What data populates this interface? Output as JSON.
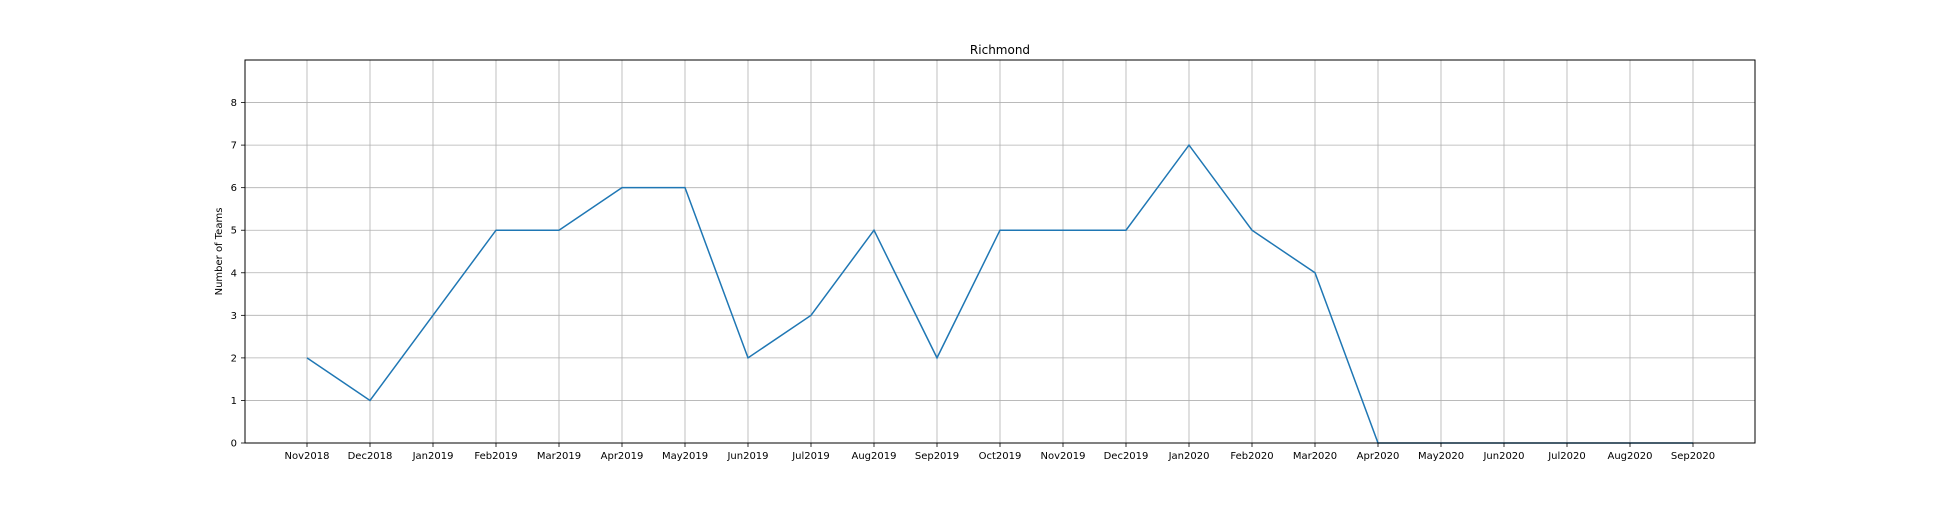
{
  "chart_data": {
    "type": "line",
    "title": "Richmond",
    "xlabel": "",
    "ylabel": "Number of Teams",
    "categories": [
      "Nov2018",
      "Dec2018",
      "Jan2019",
      "Feb2019",
      "Mar2019",
      "Apr2019",
      "May2019",
      "Jun2019",
      "Jul2019",
      "Aug2019",
      "Sep2019",
      "Oct2019",
      "Nov2019",
      "Dec2019",
      "Jan2020",
      "Feb2020",
      "Mar2020",
      "Apr2020",
      "May2020",
      "Jun2020",
      "Jul2020",
      "Aug2020",
      "Sep2020"
    ],
    "series": [
      {
        "values": [
          2,
          1,
          3,
          5,
          5,
          6,
          6,
          2,
          3,
          5,
          2,
          5,
          5,
          5,
          7,
          5,
          4,
          0,
          0,
          0,
          0,
          0,
          0
        ],
        "color": "#1f77b4"
      }
    ],
    "yticks": [
      0,
      1,
      2,
      3,
      4,
      5,
      6,
      7,
      8
    ],
    "ylim": [
      0,
      9
    ],
    "grid": true,
    "colors": {
      "line": "#1f77b4",
      "grid": "#b0b0b0",
      "axis": "#000000"
    }
  }
}
